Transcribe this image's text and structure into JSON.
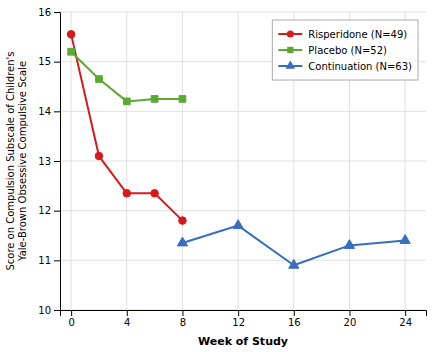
{
  "chart_data": {
    "type": "line",
    "xlabel": "Week of Study",
    "ylabel": [
      "Score on Compulsion Subscale of Children's",
      "Yale-Brown Obsessive Compulsive Scale"
    ],
    "series": [
      {
        "name": "Risperidone (N=49)",
        "color": "#d7191c",
        "marker": "circle",
        "x": [
          0,
          2,
          4,
          6,
          8
        ],
        "values": [
          15.55,
          13.1,
          12.35,
          12.35,
          11.8
        ]
      },
      {
        "name": "Placebo (N=52)",
        "color": "#5aaa32",
        "marker": "square",
        "x": [
          0,
          2,
          4,
          6,
          8
        ],
        "values": [
          15.2,
          14.65,
          14.2,
          14.25,
          14.25
        ]
      },
      {
        "name": "Continuation (N=63)",
        "color": "#3a6dbf",
        "marker": "triangle",
        "x": [
          8,
          12,
          16,
          20,
          24
        ],
        "values": [
          11.35,
          11.7,
          10.9,
          11.3,
          11.4
        ]
      }
    ],
    "xlim": [
      -0.8,
      25.5
    ],
    "xticks": [
      0,
      4,
      8,
      12,
      16,
      20,
      24
    ],
    "ylim": [
      10,
      16
    ],
    "yticks": [
      10,
      11,
      12,
      13,
      14,
      15,
      16
    ],
    "grid": true,
    "legend": "upper right"
  }
}
